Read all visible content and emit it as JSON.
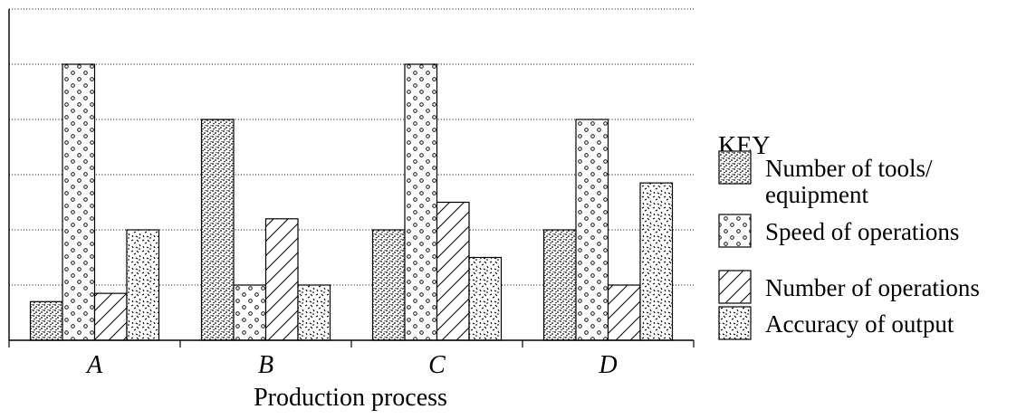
{
  "chart_data": {
    "type": "bar",
    "title": "",
    "xlabel": "Production process",
    "ylabel": "",
    "categories": [
      "A",
      "B",
      "C",
      "D"
    ],
    "ylim": [
      0,
      6
    ],
    "grid": true,
    "legend_position": "right",
    "legend_title": "KEY",
    "series": [
      {
        "name": "Number of tools/ equipment",
        "name_lines": [
          "Number of tools/",
          "equipment"
        ],
        "pattern": "stipple",
        "values": [
          0.7,
          4.0,
          2.0,
          2.0
        ]
      },
      {
        "name": "Speed of operations",
        "name_lines": [
          "Speed of operations"
        ],
        "pattern": "circles",
        "values": [
          5.0,
          1.0,
          5.0,
          4.0
        ]
      },
      {
        "name": "Number of operations",
        "name_lines": [
          "Number of operations"
        ],
        "pattern": "hatch",
        "values": [
          0.85,
          2.2,
          2.5,
          1.0
        ]
      },
      {
        "name": "Accuracy of output",
        "name_lines": [
          "Accuracy of output"
        ],
        "pattern": "flecks",
        "values": [
          2.0,
          1.0,
          1.5,
          2.85
        ]
      }
    ]
  }
}
